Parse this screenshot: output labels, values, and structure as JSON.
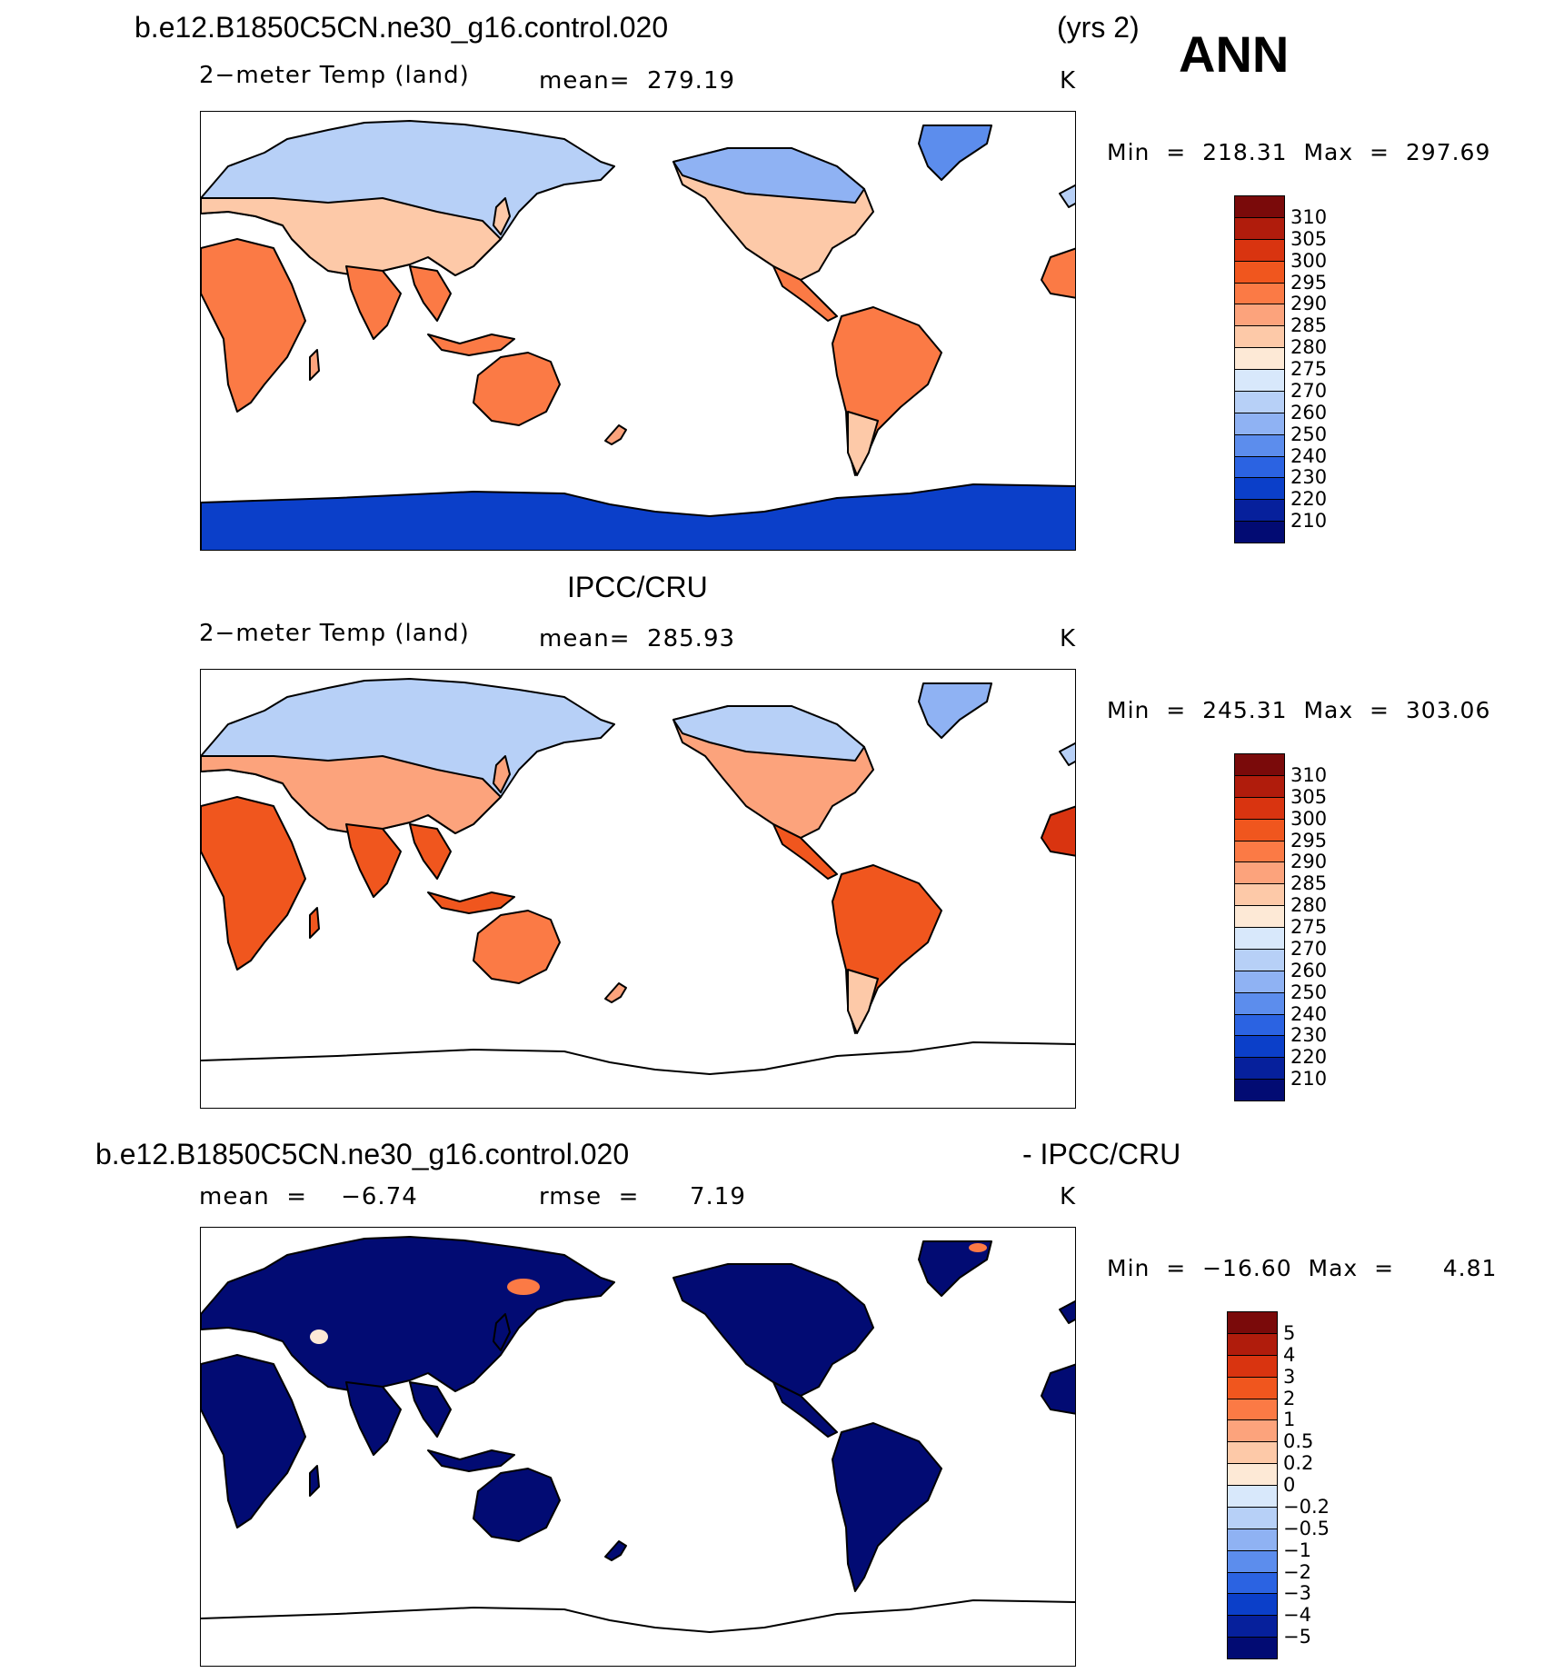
{
  "header": {
    "case_name": "b.e12.B1850C5CN.ne30_g16.control.020",
    "years": "(yrs 2)",
    "season": "ANN"
  },
  "panel1": {
    "variable": "2−meter Temp (land)",
    "mean_label": "mean=  279.19",
    "units": "K",
    "minmax": "Min  =  218.31  Max  =  297.69"
  },
  "panel2": {
    "title": "IPCC/CRU",
    "variable": "2−meter Temp (land)",
    "mean_label": "mean=  285.93",
    "units": "K",
    "minmax": "Min  =  245.31  Max  =  303.06"
  },
  "panel3": {
    "title_left": "b.e12.B1850C5CN.ne30_g16.control.020",
    "title_right": "- IPCC/CRU",
    "mean_label": "mean  =    −6.74",
    "rmse_label": "rmse  =      7.19",
    "units": "K",
    "minmax": "Min  =  −16.60  Max  =      4.81"
  },
  "colorbar_abs": {
    "labels": [
      "310",
      "305",
      "300",
      "295",
      "290",
      "285",
      "280",
      "275",
      "270",
      "260",
      "250",
      "240",
      "230",
      "220",
      "210"
    ],
    "colors": [
      "#7a0a0a",
      "#b01c0c",
      "#d93410",
      "#f0561e",
      "#fb7a45",
      "#fca37c",
      "#fdc9a8",
      "#fde9d6",
      "#d8e8fb",
      "#b7d0f7",
      "#8fb2f3",
      "#5c8ded",
      "#2b63e2",
      "#0b3fc9",
      "#06209c",
      "#020b73"
    ]
  },
  "colorbar_diff": {
    "labels": [
      "5",
      "4",
      "3",
      "2",
      "1",
      "0.5",
      "0.2",
      "0",
      "−0.2",
      "−0.5",
      "−1",
      "−2",
      "−3",
      "−4",
      "−5"
    ],
    "colors": [
      "#7a0a0a",
      "#b01c0c",
      "#d93410",
      "#f0561e",
      "#fb7a45",
      "#fca37c",
      "#fdc9a8",
      "#fde9d6",
      "#d8e8fb",
      "#b7d0f7",
      "#8fb2f3",
      "#5c8ded",
      "#2b63e2",
      "#0b3fc9",
      "#06209c",
      "#020b73"
    ]
  },
  "colors": {
    "land_warm": "#fb7a45",
    "land_mild": "#fca37c",
    "land_cool": "#fdc9a8",
    "land_cold": "#b7d0f7",
    "land_frozen": "#8fb2f3",
    "antarctica": "#0b3fc9",
    "diff_land": "#020b73"
  }
}
